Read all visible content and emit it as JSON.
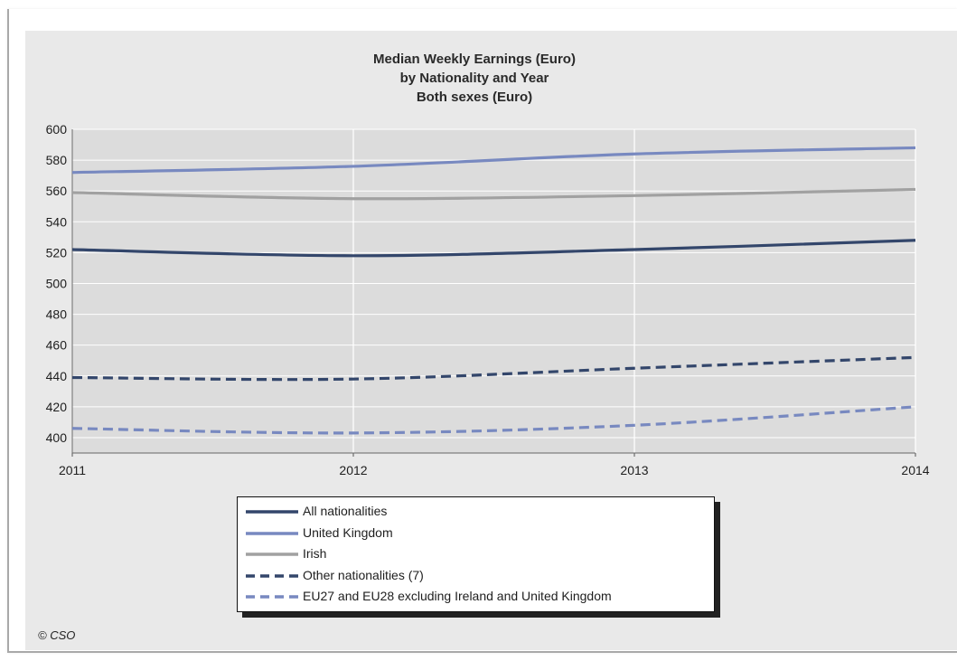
{
  "chart_data": {
    "type": "line",
    "title_lines": [
      "Median Weekly Earnings (Euro)",
      "by Nationality and Year",
      "Both sexes (Euro)"
    ],
    "xlabel": "",
    "ylabel": "",
    "x": [
      2011,
      2012,
      2013,
      2014
    ],
    "x_tick_labels": [
      "2011",
      "2012",
      "2013",
      "2014"
    ],
    "xlim": [
      2011,
      2014
    ],
    "ylim": [
      390,
      600
    ],
    "y_ticks": [
      400,
      420,
      440,
      460,
      480,
      500,
      520,
      540,
      560,
      580,
      600
    ],
    "grid": true,
    "legend_position": "bottom-center",
    "series": [
      {
        "name": "All nationalities",
        "values": [
          522,
          518,
          522,
          528
        ],
        "color": "#33466b",
        "dash": false
      },
      {
        "name": "United Kingdom",
        "values": [
          572,
          576,
          584,
          588
        ],
        "color": "#7889c0",
        "dash": false
      },
      {
        "name": "Irish",
        "values": [
          559,
          555,
          557,
          561
        ],
        "color": "#a1a1a1",
        "dash": false
      },
      {
        "name": "Other nationalities (7)",
        "values": [
          439,
          438,
          445,
          452
        ],
        "color": "#33466b",
        "dash": true
      },
      {
        "name": "EU27 and EU28 excluding Ireland and United Kingdom",
        "values": [
          406,
          403,
          408,
          420
        ],
        "color": "#7889c0",
        "dash": true
      }
    ]
  },
  "footer": {
    "copyright": "© CSO"
  }
}
